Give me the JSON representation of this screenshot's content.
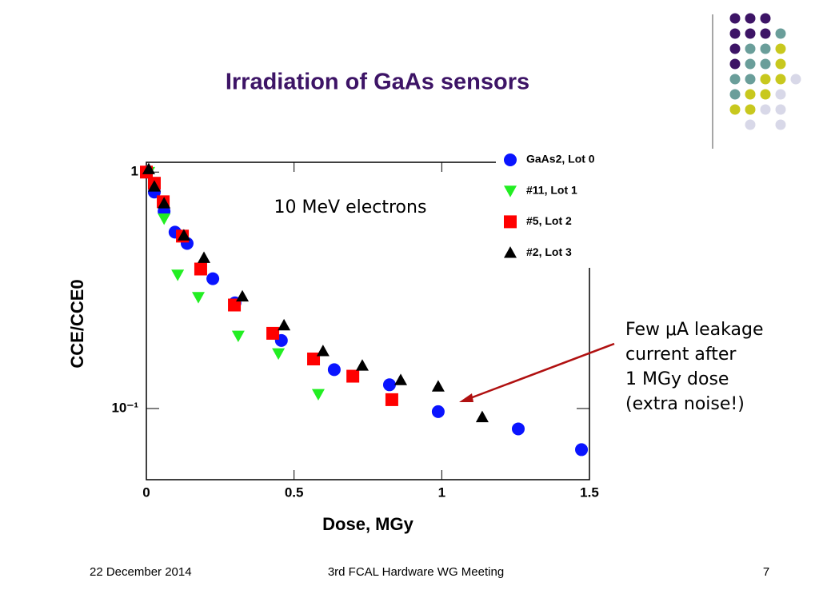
{
  "title": "Irradiation of GaAs sensors",
  "footer": {
    "date": "22 December 2014",
    "event": "3rd FCAL Hardware WG Meeting",
    "page": "7"
  },
  "chart_data": {
    "type": "scatter",
    "xlabel": "Dose, MGy",
    "ylabel": "CCE/CCE0",
    "annotation": "10 MeV electrons",
    "arrow_note": [
      "Few μA leakage",
      "current after",
      "1 MGy dose",
      "(extra noise!)"
    ],
    "log_y": true,
    "xlim": [
      0,
      1.5
    ],
    "ylim": [
      0.05,
      1.1
    ],
    "xticks": [
      0,
      0.5,
      1,
      1.5
    ],
    "yticks": [
      {
        "value": 0.1,
        "label": "10⁻¹"
      },
      1
    ],
    "series": [
      {
        "name": "GaAs2, Lot 0",
        "color": "#0a14ff",
        "marker": "circle",
        "x": [
          0,
          0.027,
          0.06,
          0.097,
          0.138,
          0.225,
          0.3,
          0.457,
          0.636,
          0.823,
          0.988,
          1.259,
          1.473
        ],
        "values": [
          1.0,
          0.823,
          0.682,
          0.557,
          0.499,
          0.354,
          0.28,
          0.194,
          0.146,
          0.126,
          0.097,
          0.082,
          0.067
        ]
      },
      {
        "name": "#11, Lot 1",
        "color": "#22ee22",
        "marker": "triangle-down",
        "x": [
          0.008,
          0.06,
          0.106,
          0.176,
          0.311,
          0.447,
          0.582
        ],
        "values": [
          1.0,
          0.636,
          0.368,
          0.296,
          0.203,
          0.171,
          0.115
        ]
      },
      {
        "name": "#5, Lot 2",
        "color": "#ff0000",
        "marker": "square",
        "x": [
          0,
          0.027,
          0.057,
          0.122,
          0.184,
          0.298,
          0.428,
          0.566,
          0.699,
          0.831
        ],
        "values": [
          1.0,
          0.897,
          0.749,
          0.536,
          0.389,
          0.274,
          0.208,
          0.162,
          0.137,
          0.109
        ]
      },
      {
        "name": "#2, Lot 3",
        "color": "#000000",
        "marker": "triangle-up",
        "x": [
          0.008,
          0.027,
          0.06,
          0.127,
          0.195,
          0.325,
          0.466,
          0.598,
          0.731,
          0.861,
          0.988,
          1.137
        ],
        "values": [
          1.03,
          0.869,
          0.738,
          0.54,
          0.434,
          0.298,
          0.225,
          0.175,
          0.152,
          0.132,
          0.124,
          0.092
        ]
      }
    ]
  }
}
